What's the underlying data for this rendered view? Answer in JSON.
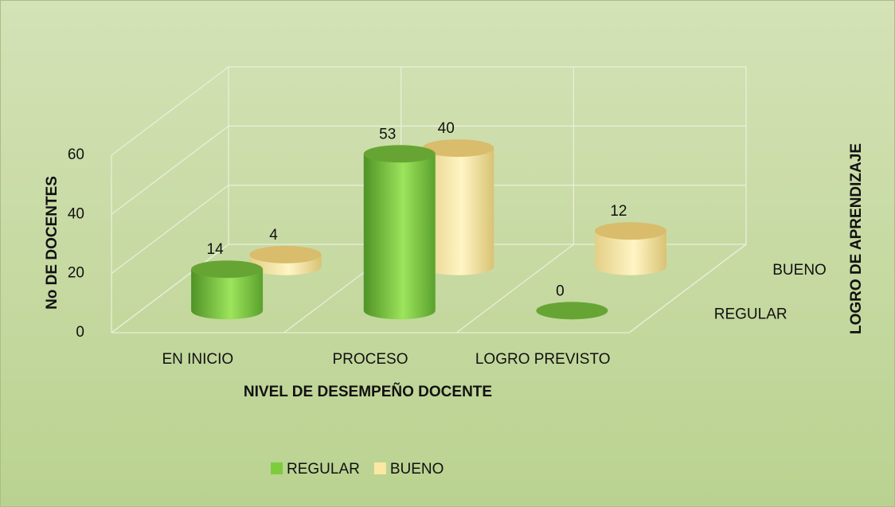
{
  "chart_data": {
    "type": "bar3d",
    "x_label": "NIVEL DE DESEMPEÑO DOCENTE",
    "y_label": "No DE DOCENTES",
    "z_label": "LOGRO DE APRENDIZAJE",
    "categories": [
      "EN INICIO",
      "PROCESO",
      "LOGRO PREVISTO"
    ],
    "series": [
      {
        "name": "REGULAR",
        "color": "#7ccc3e",
        "values": [
          14,
          53,
          0
        ]
      },
      {
        "name": "BUENO",
        "color": "#fbe8a2",
        "values": [
          4,
          40,
          12
        ]
      }
    ],
    "ylim": [
      0,
      60
    ],
    "yticks": [
      0,
      20,
      40,
      60
    ],
    "grid": true,
    "legend": "bottom"
  }
}
